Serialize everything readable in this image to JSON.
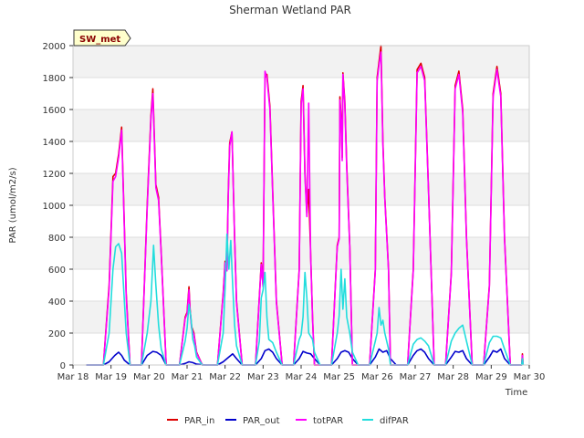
{
  "chart_data": {
    "type": "line",
    "title": "Sherman Wetland PAR",
    "xlabel": "Time",
    "ylabel": "PAR (umol/m2/s)",
    "badge": "SW_met",
    "xlim": [
      0,
      12
    ],
    "ylim": [
      0,
      2000
    ],
    "x_ticks": [
      {
        "pos": 0,
        "label": "Mar 18"
      },
      {
        "pos": 1,
        "label": "Mar 19"
      },
      {
        "pos": 2,
        "label": "Mar 20"
      },
      {
        "pos": 3,
        "label": "Mar 21"
      },
      {
        "pos": 4,
        "label": "Mar 22"
      },
      {
        "pos": 5,
        "label": "Mar 23"
      },
      {
        "pos": 6,
        "label": "Mar 24"
      },
      {
        "pos": 7,
        "label": "Mar 25"
      },
      {
        "pos": 8,
        "label": "Mar 26"
      },
      {
        "pos": 9,
        "label": "Mar 27"
      },
      {
        "pos": 10,
        "label": "Mar 28"
      },
      {
        "pos": 11,
        "label": "Mar 29"
      },
      {
        "pos": 12,
        "label": "Mar 30"
      }
    ],
    "y_ticks": [
      0,
      200,
      400,
      600,
      800,
      1000,
      1200,
      1400,
      1600,
      1800,
      2000
    ],
    "series": [
      {
        "name": "PAR_in",
        "color": "#dd0000",
        "x": [
          0.35,
          0.8,
          0.95,
          1.05,
          1.12,
          1.2,
          1.28,
          1.4,
          1.5,
          1.8,
          1.95,
          2.05,
          2.1,
          2.18,
          2.25,
          2.32,
          2.45,
          2.8,
          2.95,
          3.0,
          3.05,
          3.08,
          3.12,
          3.18,
          3.25,
          3.4,
          3.5,
          3.8,
          3.95,
          4.0,
          4.05,
          4.08,
          4.12,
          4.18,
          4.25,
          4.3,
          4.45,
          4.8,
          4.95,
          5.0,
          5.05,
          5.1,
          5.18,
          5.25,
          5.35,
          5.5,
          5.8,
          5.95,
          6.0,
          6.05,
          6.1,
          6.15,
          6.2,
          6.25,
          6.3,
          6.35,
          6.5,
          6.8,
          6.95,
          7.0,
          7.02,
          7.05,
          7.08,
          7.1,
          7.15,
          7.2,
          7.28,
          7.35,
          7.5,
          7.8,
          7.95,
          8.0,
          8.05,
          8.1,
          8.15,
          8.2,
          8.3,
          8.35,
          8.5,
          8.8,
          8.95,
          9.05,
          9.15,
          9.25,
          9.35,
          9.5,
          9.8,
          9.95,
          10.05,
          10.15,
          10.25,
          10.35,
          10.5,
          10.8,
          10.95,
          11.05,
          11.15,
          11.25,
          11.35,
          11.5,
          11.8,
          11.82,
          11.84
        ],
        "y": [
          0,
          0,
          500,
          1180,
          1200,
          1320,
          1490,
          450,
          0,
          0,
          1000,
          1560,
          1730,
          1130,
          1050,
          700,
          0,
          0,
          300,
          330,
          490,
          350,
          240,
          200,
          80,
          0,
          0,
          0,
          450,
          650,
          600,
          1050,
          1390,
          1460,
          800,
          400,
          0,
          0,
          640,
          500,
          1800,
          1820,
          1620,
          1100,
          400,
          0,
          0,
          600,
          1650,
          1750,
          1200,
          950,
          1100,
          700,
          300,
          0,
          0,
          0,
          750,
          800,
          1680,
          1550,
          1300,
          1830,
          1650,
          1250,
          750,
          0,
          0,
          0,
          600,
          1800,
          1900,
          2000,
          1400,
          1050,
          600,
          0,
          0,
          0,
          600,
          1850,
          1890,
          1800,
          1100,
          0,
          0,
          580,
          1750,
          1840,
          1600,
          800,
          0,
          0,
          500,
          1700,
          1870,
          1700,
          800,
          0,
          0,
          70,
          0
        ]
      },
      {
        "name": "PAR_out",
        "color": "#0000cc",
        "x": [
          0.35,
          0.8,
          0.95,
          1.1,
          1.2,
          1.28,
          1.35,
          1.5,
          1.8,
          1.95,
          2.1,
          2.2,
          2.32,
          2.45,
          2.8,
          2.95,
          3.05,
          3.15,
          3.25,
          3.5,
          3.8,
          3.95,
          4.1,
          4.2,
          4.3,
          4.45,
          4.8,
          4.95,
          5.05,
          5.15,
          5.25,
          5.35,
          5.5,
          5.8,
          5.95,
          6.05,
          6.15,
          6.25,
          6.35,
          6.5,
          6.8,
          6.95,
          7.05,
          7.15,
          7.25,
          7.35,
          7.5,
          7.8,
          7.95,
          8.05,
          8.15,
          8.25,
          8.35,
          8.5,
          8.8,
          8.95,
          9.05,
          9.15,
          9.25,
          9.35,
          9.5,
          9.8,
          9.95,
          10.05,
          10.15,
          10.25,
          10.35,
          10.5,
          10.8,
          10.95,
          11.05,
          11.15,
          11.25,
          11.35,
          11.5,
          11.8,
          11.82,
          11.84
        ],
        "y": [
          0,
          0,
          20,
          60,
          80,
          60,
          30,
          0,
          0,
          60,
          85,
          80,
          60,
          0,
          0,
          10,
          20,
          15,
          5,
          0,
          0,
          20,
          50,
          70,
          40,
          0,
          0,
          40,
          90,
          100,
          80,
          40,
          0,
          0,
          40,
          85,
          75,
          70,
          40,
          0,
          0,
          40,
          80,
          90,
          80,
          40,
          0,
          0,
          50,
          100,
          80,
          90,
          40,
          0,
          0,
          60,
          90,
          100,
          80,
          40,
          0,
          0,
          50,
          85,
          80,
          90,
          40,
          0,
          0,
          50,
          90,
          80,
          100,
          40,
          0,
          0,
          20,
          0
        ]
      },
      {
        "name": "totPAR",
        "color": "#ff00ff",
        "x": [
          0.35,
          0.8,
          0.95,
          1.05,
          1.12,
          1.2,
          1.28,
          1.4,
          1.5,
          1.8,
          1.95,
          2.05,
          2.1,
          2.18,
          2.25,
          2.32,
          2.45,
          2.8,
          2.95,
          3.0,
          3.05,
          3.08,
          3.12,
          3.18,
          3.25,
          3.4,
          3.5,
          3.8,
          3.95,
          4.0,
          4.05,
          4.08,
          4.12,
          4.18,
          4.25,
          4.3,
          4.45,
          4.8,
          4.95,
          5.0,
          5.05,
          5.1,
          5.18,
          5.25,
          5.35,
          5.5,
          5.8,
          5.95,
          6.0,
          6.05,
          6.1,
          6.15,
          6.2,
          6.25,
          6.3,
          6.35,
          6.5,
          6.8,
          6.95,
          7.0,
          7.02,
          7.05,
          7.08,
          7.1,
          7.15,
          7.2,
          7.28,
          7.35,
          7.5,
          7.8,
          7.95,
          8.0,
          8.05,
          8.1,
          8.15,
          8.2,
          8.3,
          8.35,
          8.5,
          8.8,
          8.95,
          9.05,
          9.15,
          9.25,
          9.35,
          9.5,
          9.8,
          9.95,
          10.05,
          10.15,
          10.25,
          10.35,
          10.5,
          10.8,
          10.95,
          11.05,
          11.15,
          11.25,
          11.35,
          11.5,
          11.8,
          11.82,
          11.84
        ],
        "y": [
          0,
          0,
          480,
          1150,
          1180,
          1300,
          1470,
          430,
          0,
          0,
          980,
          1540,
          1700,
          1110,
          1030,
          690,
          0,
          0,
          290,
          320,
          470,
          340,
          230,
          190,
          75,
          0,
          0,
          0,
          440,
          640,
          590,
          1030,
          1370,
          1460,
          790,
          390,
          0,
          0,
          630,
          490,
          1840,
          1800,
          1600,
          1080,
          390,
          0,
          0,
          590,
          1630,
          1730,
          1180,
          930,
          1640,
          690,
          290,
          0,
          0,
          0,
          740,
          790,
          1660,
          1530,
          1280,
          1820,
          1630,
          1230,
          740,
          0,
          0,
          0,
          590,
          1780,
          1880,
          1960,
          1380,
          1040,
          590,
          0,
          0,
          0,
          590,
          1830,
          1870,
          1780,
          1090,
          0,
          0,
          570,
          1730,
          1820,
          1580,
          790,
          0,
          0,
          490,
          1680,
          1850,
          1680,
          790,
          0,
          0,
          60,
          0
        ]
      },
      {
        "name": "difPAR",
        "color": "#22dddd",
        "x": [
          0.35,
          0.8,
          0.95,
          1.05,
          1.12,
          1.2,
          1.28,
          1.4,
          1.5,
          1.8,
          1.95,
          2.05,
          2.12,
          2.18,
          2.25,
          2.32,
          2.45,
          2.8,
          2.95,
          3.0,
          3.05,
          3.1,
          3.15,
          3.2,
          3.25,
          3.4,
          3.5,
          3.8,
          3.95,
          4.0,
          4.05,
          4.1,
          4.15,
          4.2,
          4.25,
          4.3,
          4.45,
          4.8,
          4.9,
          4.95,
          5.0,
          5.05,
          5.1,
          5.15,
          5.25,
          5.35,
          5.5,
          5.8,
          5.95,
          6.0,
          6.05,
          6.1,
          6.15,
          6.2,
          6.3,
          6.35,
          6.5,
          6.8,
          6.95,
          7.0,
          7.05,
          7.1,
          7.15,
          7.2,
          7.28,
          7.35,
          7.5,
          7.8,
          7.95,
          8.0,
          8.05,
          8.1,
          8.15,
          8.2,
          8.3,
          8.35,
          8.5,
          8.8,
          8.95,
          9.05,
          9.15,
          9.25,
          9.35,
          9.5,
          9.8,
          9.95,
          10.05,
          10.15,
          10.25,
          10.35,
          10.5,
          10.8,
          10.95,
          11.05,
          11.15,
          11.25,
          11.35,
          11.5,
          11.8,
          11.82,
          11.84
        ],
        "y": [
          0,
          0,
          200,
          600,
          740,
          760,
          700,
          200,
          0,
          0,
          200,
          400,
          750,
          500,
          250,
          100,
          0,
          0,
          150,
          230,
          380,
          300,
          160,
          120,
          50,
          0,
          0,
          0,
          200,
          480,
          820,
          600,
          780,
          500,
          250,
          120,
          0,
          0,
          150,
          420,
          470,
          580,
          300,
          160,
          140,
          80,
          0,
          0,
          160,
          190,
          300,
          580,
          420,
          200,
          160,
          80,
          0,
          0,
          200,
          310,
          600,
          350,
          540,
          300,
          200,
          80,
          0,
          0,
          150,
          200,
          360,
          250,
          280,
          200,
          100,
          0,
          0,
          0,
          130,
          160,
          170,
          150,
          120,
          0,
          0,
          150,
          200,
          230,
          250,
          150,
          0,
          0,
          140,
          180,
          180,
          170,
          100,
          0,
          0,
          40,
          0
        ]
      }
    ]
  }
}
